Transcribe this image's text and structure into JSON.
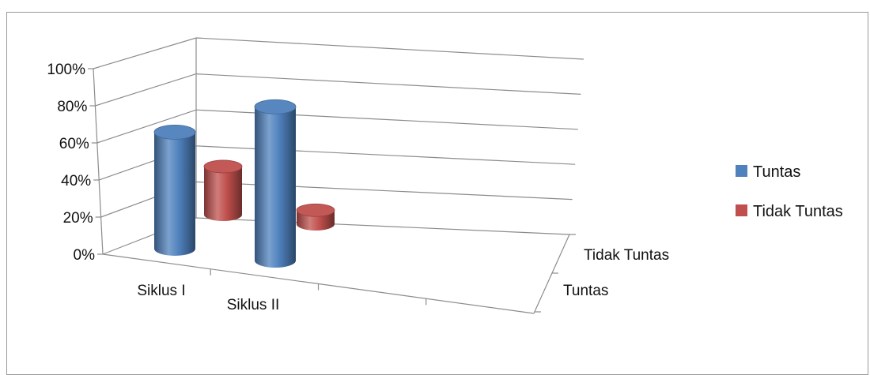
{
  "caption": "",
  "chart_data": {
    "type": "bar",
    "subtype": "3d-cylinder",
    "title": "",
    "categories": [
      "Siklus I",
      "Siklus II"
    ],
    "series": [
      {
        "name": "Tuntas",
        "values": [
          69,
          91
        ],
        "color": "#4f81bd"
      },
      {
        "name": "Tidak Tuntas",
        "values": [
          31,
          9
        ],
        "color": "#c0504d"
      }
    ],
    "depth_labels": [
      "Tuntas",
      "Tidak Tuntas"
    ],
    "y_ticks": [
      "0%",
      "20%",
      "40%",
      "60%",
      "80%",
      "100%"
    ],
    "ylim": [
      0,
      100
    ],
    "grid": true,
    "legend_position": "right"
  }
}
